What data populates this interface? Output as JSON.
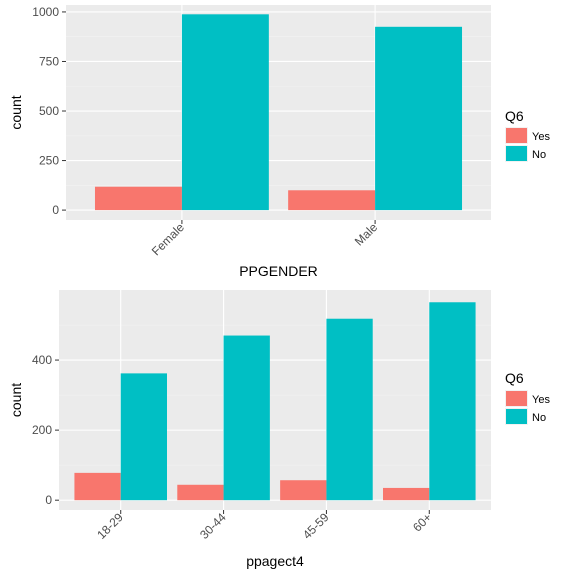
{
  "colors": {
    "panel": "#EBEBEB",
    "grid_major": "#FFFFFF",
    "grid_minor": "#F2F2F2",
    "yes": "#F8766D",
    "no": "#00BFC4"
  },
  "chart_data": [
    {
      "type": "bar",
      "xlabel": "PPGENDER",
      "ylabel": "count",
      "categories": [
        "Female",
        "Male"
      ],
      "series": [
        {
          "name": "Yes",
          "color": "#F8766D",
          "values": [
            118,
            100
          ]
        },
        {
          "name": "No",
          "color": "#00BFC4",
          "values": [
            988,
            925
          ]
        }
      ],
      "ylim": [
        -50,
        1035
      ],
      "yticks": [
        0,
        250,
        500,
        750,
        1000
      ],
      "ytick_labels": [
        "0",
        "250",
        "500",
        "750",
        "1000"
      ],
      "legend": {
        "title": "Q6",
        "placement": "right",
        "labels": [
          "Yes",
          "No"
        ]
      },
      "grid": true
    },
    {
      "type": "bar",
      "xlabel": "ppagect4",
      "ylabel": "count",
      "categories": [
        "18-29",
        "30-44",
        "45-59",
        "60+"
      ],
      "series": [
        {
          "name": "Yes",
          "color": "#F8766D",
          "values": [
            78,
            44,
            57,
            35
          ]
        },
        {
          "name": "No",
          "color": "#00BFC4",
          "values": [
            362,
            470,
            518,
            565
          ]
        }
      ],
      "ylim": [
        -28,
        600
      ],
      "yticks": [
        0,
        200,
        400
      ],
      "ytick_labels": [
        "0",
        "200",
        "400"
      ],
      "legend": {
        "title": "Q6",
        "placement": "right",
        "labels": [
          "Yes",
          "No"
        ]
      },
      "grid": true
    }
  ]
}
